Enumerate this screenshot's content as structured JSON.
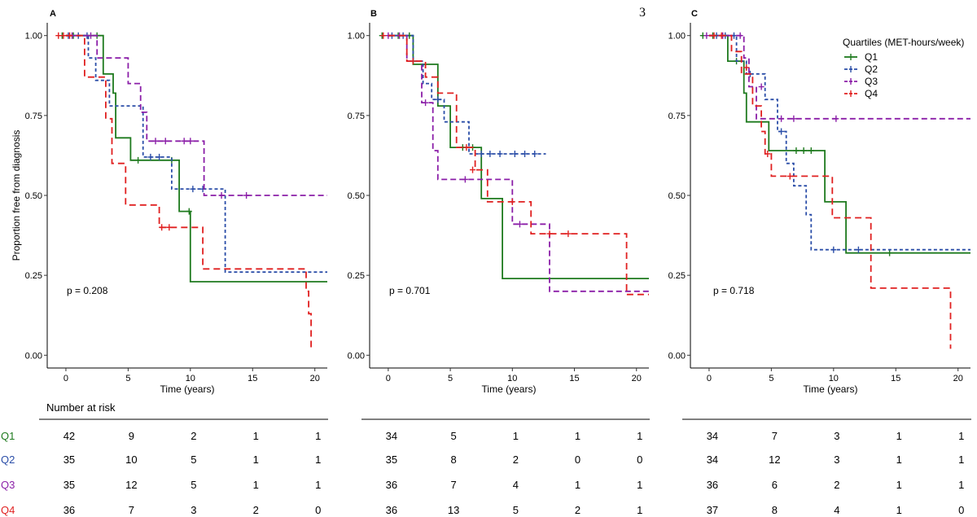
{
  "page_number": "3",
  "y_label": "Proportion free from diagnosis",
  "x_label": "Time (years)",
  "legend_title": "Quartiles (MET-hours/week)",
  "risk_header": "Number at risk",
  "quartiles": [
    "Q1",
    "Q2",
    "Q3",
    "Q4"
  ],
  "colors": {
    "Q1": "#1e7a1e",
    "Q2": "#2b4ea8",
    "Q3": "#8b1fa8",
    "Q4": "#e02020"
  },
  "chart_data": [
    {
      "type": "line",
      "title": "A",
      "xlim": [
        -1.5,
        21
      ],
      "ylim": [
        -0.04,
        1.04
      ],
      "xticks": [
        0,
        5,
        10,
        15,
        20
      ],
      "yticks": [
        0,
        0.25,
        0.5,
        0.75,
        1
      ],
      "ytick_labels": [
        "0.00",
        "0.25",
        "0.50",
        "0.75",
        "1.00"
      ],
      "pvalue": "p = 0.208",
      "series": [
        {
          "name": "Q1",
          "dash": "",
          "steps": [
            [
              0,
              1
            ],
            [
              3,
              0.88
            ],
            [
              3.8,
              0.82
            ],
            [
              4,
              0.68
            ],
            [
              5.2,
              0.61
            ],
            [
              9.1,
              0.45
            ],
            [
              10,
              0.23
            ],
            [
              21,
              0.23
            ]
          ],
          "censors": [
            [
              -0.3,
              1
            ],
            [
              0.6,
              1
            ],
            [
              2.5,
              1
            ],
            [
              5.8,
              0.61
            ],
            [
              8.5,
              0.61
            ],
            [
              9.9,
              0.45
            ]
          ]
        },
        {
          "name": "Q2",
          "dash": "4,3",
          "steps": [
            [
              0,
              1
            ],
            [
              1.8,
              0.93
            ],
            [
              2.4,
              0.86
            ],
            [
              3.5,
              0.78
            ],
            [
              6.2,
              0.62
            ],
            [
              8.5,
              0.52
            ],
            [
              12.8,
              0.26
            ],
            [
              21,
              0.26
            ]
          ],
          "censors": [
            [
              0.2,
              1
            ],
            [
              1,
              1
            ],
            [
              1.7,
              1
            ],
            [
              6.8,
              0.62
            ],
            [
              7.5,
              0.62
            ],
            [
              10.2,
              0.52
            ],
            [
              11,
              0.52
            ]
          ]
        },
        {
          "name": "Q3",
          "dash": "7,4",
          "steps": [
            [
              0,
              1
            ],
            [
              2.5,
              0.93
            ],
            [
              5,
              0.85
            ],
            [
              6,
              0.76
            ],
            [
              6.5,
              0.67
            ],
            [
              11.1,
              0.5
            ],
            [
              21,
              0.5
            ]
          ],
          "censors": [
            [
              0.5,
              1
            ],
            [
              2,
              1
            ],
            [
              7.2,
              0.67
            ],
            [
              8,
              0.67
            ],
            [
              9.5,
              0.67
            ],
            [
              10,
              0.67
            ],
            [
              12.5,
              0.5
            ],
            [
              14.5,
              0.5
            ]
          ]
        },
        {
          "name": "Q4",
          "dash": "8,5",
          "steps": [
            [
              0,
              1
            ],
            [
              1.5,
              0.87
            ],
            [
              3.2,
              0.74
            ],
            [
              3.7,
              0.6
            ],
            [
              4.8,
              0.47
            ],
            [
              7.5,
              0.4
            ],
            [
              11,
              0.27
            ],
            [
              19.3,
              0.2
            ],
            [
              19.5,
              0.13
            ],
            [
              19.7,
              0.02
            ]
          ],
          "censors": [
            [
              -0.6,
              1
            ],
            [
              -0.2,
              1
            ],
            [
              0.3,
              1
            ],
            [
              7.7,
              0.4
            ],
            [
              8.3,
              0.4
            ]
          ]
        }
      ],
      "risk": {
        "Q1": [
          "42",
          "9",
          "2",
          "1",
          "1"
        ],
        "Q2": [
          "35",
          "10",
          "5",
          "1",
          "1"
        ],
        "Q3": [
          "35",
          "12",
          "5",
          "1",
          "1"
        ],
        "Q4": [
          "36",
          "7",
          "3",
          "2",
          "0"
        ]
      }
    },
    {
      "type": "line",
      "title": "B",
      "xlim": [
        -1.5,
        21
      ],
      "ylim": [
        -0.04,
        1.04
      ],
      "xticks": [
        0,
        5,
        10,
        15,
        20
      ],
      "yticks": [
        0,
        0.25,
        0.5,
        0.75,
        1
      ],
      "ytick_labels": [
        "0.00",
        "0.25",
        "0.50",
        "0.75",
        "1.00"
      ],
      "pvalue": "p = 0.701",
      "series": [
        {
          "name": "Q1",
          "dash": "",
          "steps": [
            [
              0,
              1
            ],
            [
              2,
              0.91
            ],
            [
              4,
              0.78
            ],
            [
              5,
              0.65
            ],
            [
              7.5,
              0.49
            ],
            [
              9.2,
              0.24
            ],
            [
              21,
              0.24
            ]
          ],
          "censors": [
            [
              -0.5,
              1
            ],
            [
              0.8,
              1
            ],
            [
              1.7,
              1
            ],
            [
              6,
              0.65
            ],
            [
              6.8,
              0.65
            ]
          ]
        },
        {
          "name": "Q2",
          "dash": "4,3",
          "steps": [
            [
              0,
              1
            ],
            [
              2,
              0.92
            ],
            [
              2.8,
              0.85
            ],
            [
              3.5,
              0.8
            ],
            [
              4.5,
              0.73
            ],
            [
              6.5,
              0.63
            ],
            [
              12.7,
              0.63
            ]
          ],
          "censors": [
            [
              0.3,
              1
            ],
            [
              1.2,
              1
            ],
            [
              4,
              0.8
            ],
            [
              7.5,
              0.63
            ],
            [
              8.2,
              0.63
            ],
            [
              9,
              0.63
            ],
            [
              10.2,
              0.63
            ],
            [
              11,
              0.63
            ],
            [
              11.8,
              0.63
            ]
          ]
        },
        {
          "name": "Q3",
          "dash": "7,4",
          "steps": [
            [
              0,
              1
            ],
            [
              1.5,
              0.92
            ],
            [
              2.7,
              0.79
            ],
            [
              3.6,
              0.64
            ],
            [
              4,
              0.55
            ],
            [
              10,
              0.41
            ],
            [
              13,
              0.2
            ],
            [
              21,
              0.2
            ]
          ],
          "censors": [
            [
              0,
              1
            ],
            [
              0.9,
              1
            ],
            [
              3,
              0.79
            ],
            [
              6.2,
              0.55
            ],
            [
              10.6,
              0.41
            ]
          ]
        },
        {
          "name": "Q4",
          "dash": "8,5",
          "steps": [
            [
              0,
              1
            ],
            [
              1.5,
              0.92
            ],
            [
              3,
              0.87
            ],
            [
              4,
              0.82
            ],
            [
              5.5,
              0.65
            ],
            [
              7,
              0.58
            ],
            [
              8,
              0.48
            ],
            [
              10.5,
              0.48
            ],
            [
              11.5,
              0.38
            ],
            [
              19.2,
              0.19
            ],
            [
              21,
              0.19
            ]
          ],
          "censors": [
            [
              -0.4,
              1
            ],
            [
              2,
              0.92
            ],
            [
              6.3,
              0.65
            ],
            [
              6.8,
              0.58
            ],
            [
              10,
              0.48
            ],
            [
              13,
              0.38
            ],
            [
              14.5,
              0.38
            ]
          ]
        }
      ],
      "risk": {
        "Q1": [
          "34",
          "5",
          "1",
          "1",
          "1"
        ],
        "Q2": [
          "35",
          "8",
          "2",
          "0",
          "0"
        ],
        "Q3": [
          "36",
          "7",
          "4",
          "1",
          "1"
        ],
        "Q4": [
          "36",
          "13",
          "5",
          "2",
          "1"
        ]
      }
    },
    {
      "type": "line",
      "title": "C",
      "xlim": [
        -1.5,
        21
      ],
      "ylim": [
        -0.04,
        1.04
      ],
      "xticks": [
        0,
        5,
        10,
        15,
        20
      ],
      "yticks": [
        0,
        0.25,
        0.5,
        0.75,
        1
      ],
      "ytick_labels": [
        "0.00",
        "0.25",
        "0.50",
        "0.75",
        "1.00"
      ],
      "pvalue": "p = 0.718",
      "series": [
        {
          "name": "Q1",
          "dash": "",
          "steps": [
            [
              0,
              1
            ],
            [
              1.5,
              0.92
            ],
            [
              2.8,
              0.82
            ],
            [
              3,
              0.73
            ],
            [
              4.8,
              0.64
            ],
            [
              9.3,
              0.48
            ],
            [
              11,
              0.32
            ],
            [
              21,
              0.32
            ]
          ],
          "censors": [
            [
              -0.5,
              1
            ],
            [
              0.3,
              1
            ],
            [
              2.2,
              0.92
            ],
            [
              7,
              0.64
            ],
            [
              7.6,
              0.64
            ],
            [
              8.2,
              0.64
            ],
            [
              14.5,
              0.32
            ]
          ]
        },
        {
          "name": "Q2",
          "dash": "4,3",
          "steps": [
            [
              0,
              1
            ],
            [
              2.2,
              0.92
            ],
            [
              3,
              0.88
            ],
            [
              4.5,
              0.8
            ],
            [
              5.5,
              0.7
            ],
            [
              6.2,
              0.6
            ],
            [
              6.8,
              0.53
            ],
            [
              7.8,
              0.44
            ],
            [
              8.2,
              0.33
            ],
            [
              21,
              0.33
            ]
          ],
          "censors": [
            [
              0.6,
              1
            ],
            [
              1.3,
              1
            ],
            [
              2,
              1
            ],
            [
              3.3,
              0.88
            ],
            [
              5.8,
              0.7
            ],
            [
              10,
              0.33
            ],
            [
              12,
              0.33
            ]
          ]
        },
        {
          "name": "Q3",
          "dash": "7,4",
          "steps": [
            [
              0,
              1
            ],
            [
              2.8,
              0.93
            ],
            [
              3.2,
              0.84
            ],
            [
              3.8,
              0.74
            ],
            [
              21,
              0.74
            ]
          ],
          "censors": [
            [
              -0.2,
              1
            ],
            [
              1.1,
              1
            ],
            [
              2.5,
              1
            ],
            [
              4.2,
              0.84
            ],
            [
              5.8,
              0.74
            ],
            [
              6.8,
              0.74
            ],
            [
              10.2,
              0.74
            ]
          ]
        },
        {
          "name": "Q4",
          "dash": "8,5",
          "steps": [
            [
              0,
              1
            ],
            [
              1.8,
              0.95
            ],
            [
              2.6,
              0.88
            ],
            [
              3.5,
              0.78
            ],
            [
              4.2,
              0.7
            ],
            [
              4.5,
              0.63
            ],
            [
              5,
              0.56
            ],
            [
              9,
              0.56
            ],
            [
              9.9,
              0.43
            ],
            [
              11,
              0.43
            ],
            [
              13,
              0.21
            ],
            [
              19,
              0.21
            ],
            [
              19.4,
              0.02
            ]
          ],
          "censors": [
            [
              0.4,
              1
            ],
            [
              1,
              1
            ],
            [
              3,
              0.9
            ],
            [
              4.7,
              0.63
            ],
            [
              6.5,
              0.56
            ]
          ]
        }
      ],
      "risk": {
        "Q1": [
          "34",
          "7",
          "3",
          "1",
          "1"
        ],
        "Q2": [
          "34",
          "12",
          "3",
          "1",
          "1"
        ],
        "Q3": [
          "36",
          "6",
          "2",
          "1",
          "1"
        ],
        "Q4": [
          "37",
          "8",
          "4",
          "1",
          "0"
        ]
      }
    }
  ]
}
